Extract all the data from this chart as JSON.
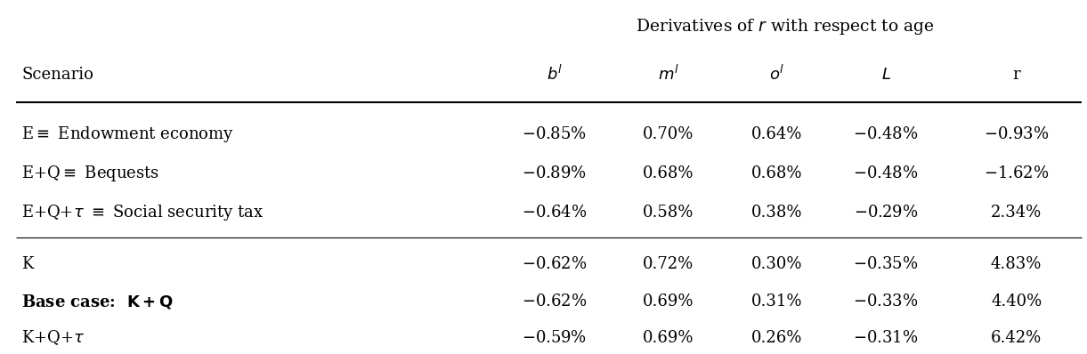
{
  "title": "Derivatives of $r$ with respect to age",
  "col_headers": [
    "Scenario",
    "$b^l$",
    "$m^l$",
    "$o^l$",
    "$L$",
    "r"
  ],
  "rows": [
    {
      "scenario": "E$\\equiv$ Endowment economy",
      "scenario_bold": false,
      "values": [
        "$-$0.85%",
        "0.70%",
        "0.64%",
        "$-$0.48%",
        "$-$0.93%"
      ]
    },
    {
      "scenario": "E+Q$\\equiv$ Bequests",
      "scenario_bold": false,
      "values": [
        "$-$0.89%",
        "0.68%",
        "0.68%",
        "$-$0.48%",
        "$-$1.62%"
      ]
    },
    {
      "scenario": "E+Q+$\\tau$ $\\equiv$ Social security tax",
      "scenario_bold": false,
      "values": [
        "$-$0.64%",
        "0.58%",
        "0.38%",
        "$-$0.29%",
        "2.34%"
      ]
    },
    {
      "scenario": "K",
      "scenario_bold": false,
      "values": [
        "$-$0.62%",
        "0.72%",
        "0.30%",
        "$-$0.35%",
        "4.83%"
      ]
    },
    {
      "scenario": "Base case:  $\\mathbf{K+Q}$",
      "scenario_bold": true,
      "values": [
        "$-$0.62%",
        "0.69%",
        "0.31%",
        "$-$0.33%",
        "4.40%"
      ]
    },
    {
      "scenario": "K+Q+$\\tau$",
      "scenario_bold": false,
      "values": [
        "$-$0.59%",
        "0.69%",
        "0.26%",
        "$-$0.31%",
        "6.42%"
      ]
    }
  ],
  "bg_color": "white",
  "text_color": "black",
  "fontsize": 13.0,
  "title_fontsize": 13.5
}
